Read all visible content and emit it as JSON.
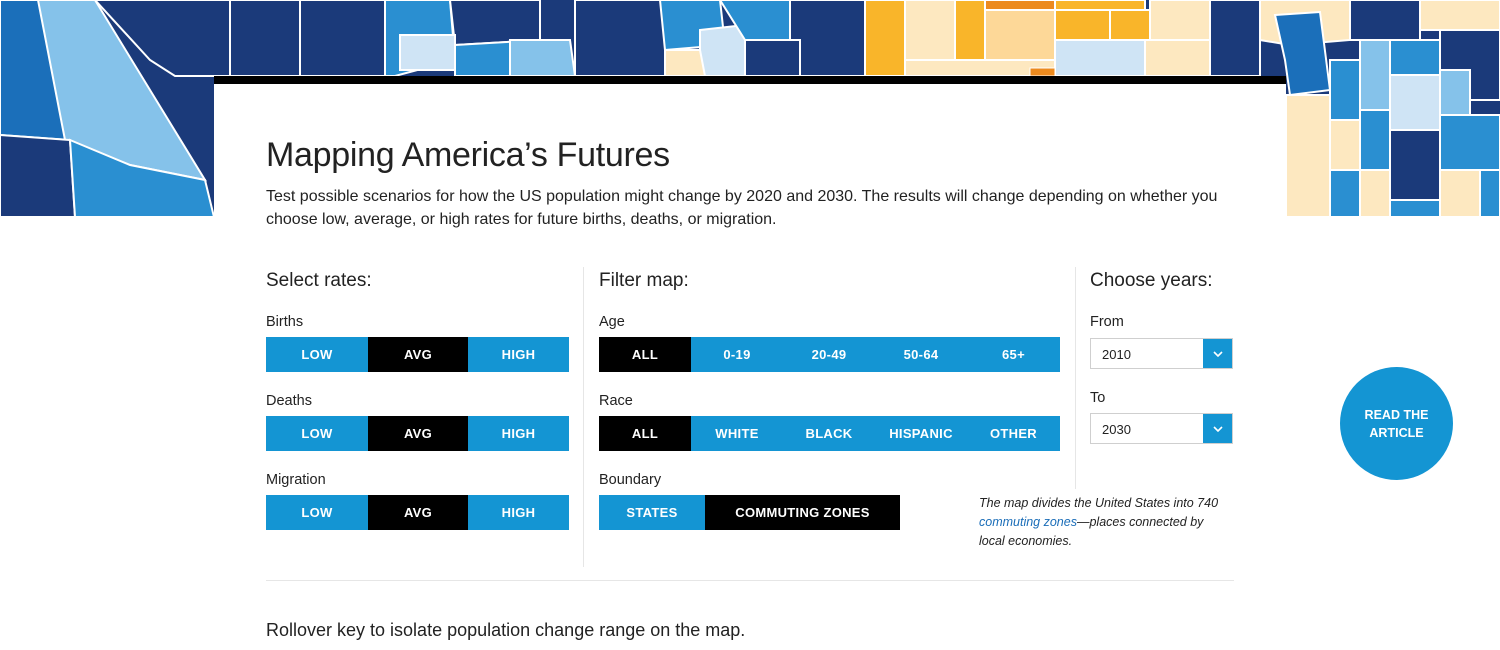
{
  "page": {
    "title": "Mapping America’s Futures",
    "description": "Test possible scenarios for how the US population might change by 2020 and 2030. The results will change depending on whether you choose low, average, or high rates for future births, deaths, or migration."
  },
  "rates": {
    "heading": "Select rates:",
    "groups": [
      {
        "label": "Births",
        "options": [
          "LOW",
          "AVG",
          "HIGH"
        ],
        "selected": "AVG"
      },
      {
        "label": "Deaths",
        "options": [
          "LOW",
          "AVG",
          "HIGH"
        ],
        "selected": "AVG"
      },
      {
        "label": "Migration",
        "options": [
          "LOW",
          "AVG",
          "HIGH"
        ],
        "selected": "AVG"
      }
    ]
  },
  "filter": {
    "heading": "Filter map:",
    "age": {
      "label": "Age",
      "options": [
        "ALL",
        "0-19",
        "20-49",
        "50-64",
        "65+"
      ],
      "selected": "ALL"
    },
    "race": {
      "label": "Race",
      "options": [
        "ALL",
        "WHITE",
        "BLACK",
        "HISPANIC",
        "OTHER"
      ],
      "selected": "ALL"
    },
    "boundary": {
      "label": "Boundary",
      "options": [
        "STATES",
        "COMMUTING ZONES"
      ],
      "selected": "COMMUTING ZONES"
    },
    "note_before": "The map divides the United States into 740 ",
    "note_link": "commuting zones",
    "note_after": "—places connected by local economies."
  },
  "years": {
    "heading": "Choose years:",
    "from_label": "From",
    "from_value": "2010",
    "to_label": "To",
    "to_value": "2030"
  },
  "rollover_text": "Rollover key to isolate population change range on the map.",
  "read_button": "READ THE ARTICLE",
  "colors": {
    "accent_blue": "#1495d3",
    "selected": "#000000",
    "link": "#1a6db8",
    "map_dark_blue": "#1b3a7a",
    "map_mid_blue": "#2a8fd1",
    "map_light_blue": "#85c2ea",
    "map_orange": "#f9b52a",
    "map_cream": "#fde8c0"
  }
}
